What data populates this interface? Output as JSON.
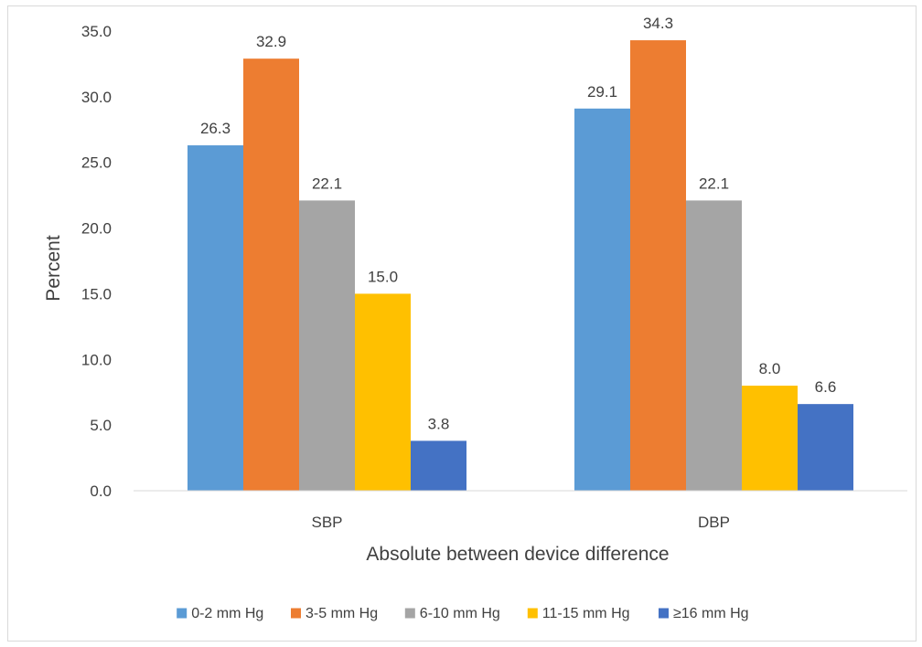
{
  "chart_data": {
    "type": "bar",
    "title": "",
    "xlabel": "Absolute between device difference",
    "ylabel": "Percent",
    "ylim": [
      0,
      35
    ],
    "yticks": [
      "0.0",
      "5.0",
      "10.0",
      "15.0",
      "20.0",
      "25.0",
      "30.0",
      "35.0"
    ],
    "categories": [
      "SBP",
      "DBP"
    ],
    "series": [
      {
        "name": "0-2 mm Hg",
        "values": [
          26.3,
          29.1
        ],
        "labels": [
          "26.3",
          "29.1"
        ],
        "color": "#5b9bd5"
      },
      {
        "name": "3-5 mm Hg",
        "values": [
          32.9,
          34.3
        ],
        "labels": [
          "32.9",
          "34.3"
        ],
        "color": "#ed7d31"
      },
      {
        "name": "6-10 mm Hg",
        "values": [
          22.1,
          22.1
        ],
        "labels": [
          "22.1",
          "22.1"
        ],
        "color": "#a5a5a5"
      },
      {
        "name": "11-15 mm Hg",
        "values": [
          15.0,
          8.0
        ],
        "labels": [
          "15.0",
          "8.0"
        ],
        "color": "#ffc000"
      },
      {
        "name": "≥16 mm Hg",
        "values": [
          3.8,
          6.6
        ],
        "labels": [
          "3.8",
          "6.6"
        ],
        "color": "#4472c4"
      }
    ],
    "grid": false,
    "legend_position": "bottom"
  }
}
